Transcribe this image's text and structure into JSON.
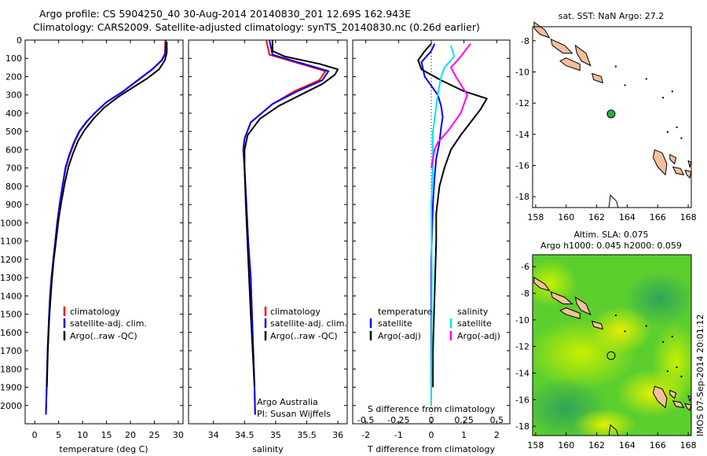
{
  "header": {
    "line1": "Argo profile: CS 5904250_40 30-Aug-2014 20140830_201 12.69S 162.943E",
    "line2": "Climatology: CARS2009. Satellite-adjusted climatology: synTS_20140830.nc (0.26d earlier)"
  },
  "chart_data": [
    {
      "type": "line",
      "name": "temperature-panel",
      "xlabel": "temperature (deg C)",
      "ylabel": "",
      "xlim": [
        -2,
        31
      ],
      "ylim": [
        2100,
        0
      ],
      "xticks": [
        0,
        5,
        10,
        15,
        20,
        25,
        30
      ],
      "yticks": [
        0,
        100,
        200,
        300,
        400,
        500,
        600,
        700,
        800,
        900,
        1000,
        1100,
        1200,
        1300,
        1400,
        1500,
        1600,
        1700,
        1800,
        1900,
        2000
      ],
      "legend": [
        "climatology",
        "satellite-adj. clim.",
        "Argo(..raw -QC)"
      ],
      "series": [
        {
          "name": "climatology",
          "color": "#ff0000",
          "x": [
            27.3,
            27.2,
            26.5,
            24.5,
            21.5,
            18.5,
            15.0,
            12.5,
            10.8,
            9.4,
            8.3,
            7.3,
            6.5,
            5.8,
            5.2,
            4.7,
            4.3,
            3.9,
            3.5,
            3.2,
            3.0,
            2.7,
            2.5,
            2.35
          ],
          "y": [
            0,
            75,
            110,
            160,
            220,
            280,
            340,
            400,
            450,
            500,
            560,
            630,
            700,
            800,
            900,
            1000,
            1100,
            1200,
            1300,
            1400,
            1500,
            1700,
            1900,
            2050
          ]
        },
        {
          "name": "satellite-adj. clim.",
          "color": "#0000ff",
          "x": [
            27.4,
            27.3,
            26.6,
            24.6,
            21.6,
            18.5,
            15.0,
            12.5,
            10.7,
            9.3,
            8.2,
            7.2,
            6.4,
            5.8,
            5.2,
            4.7,
            4.3,
            3.9,
            3.5,
            3.2,
            3.0,
            2.7,
            2.5,
            2.35
          ],
          "y": [
            0,
            75,
            110,
            160,
            220,
            280,
            340,
            400,
            450,
            500,
            560,
            630,
            700,
            800,
            900,
            1000,
            1100,
            1200,
            1300,
            1400,
            1500,
            1700,
            1900,
            2050
          ]
        },
        {
          "name": "Argo(..raw -QC)",
          "color": "#000000",
          "x": [
            27.6,
            27.6,
            27.2,
            26.0,
            23.5,
            20.5,
            17.5,
            14.5,
            12.3,
            10.5,
            9.1,
            8.0,
            7.1,
            6.3,
            5.6,
            5.0,
            4.5,
            4.0,
            3.6,
            3.3,
            3.0,
            2.75,
            2.55
          ],
          "y": [
            10,
            70,
            110,
            160,
            210,
            260,
            310,
            370,
            430,
            490,
            550,
            620,
            690,
            780,
            880,
            980,
            1090,
            1200,
            1310,
            1420,
            1540,
            1700,
            1900
          ]
        }
      ]
    },
    {
      "type": "line",
      "name": "salinity-panel",
      "xlabel": "salinity",
      "xlim": [
        33.6,
        36.15
      ],
      "ylim": [
        2100,
        0
      ],
      "xticks": [
        34,
        34.5,
        35,
        35.5,
        36
      ],
      "legend": [
        "climatology",
        "satellite-adj. clim.",
        "Argo(..raw -QC)"
      ],
      "annotation": [
        "Argo Australia",
        "PI: Susan Wijffels"
      ],
      "series": [
        {
          "name": "climatology",
          "color": "#ff0000",
          "x": [
            34.85,
            34.9,
            35.3,
            35.8,
            35.7,
            35.3,
            34.95,
            34.6,
            34.5,
            34.48,
            34.5,
            34.53,
            34.56,
            34.6,
            34.62,
            34.64,
            34.66,
            34.67
          ],
          "y": [
            0,
            80,
            120,
            170,
            220,
            280,
            350,
            450,
            540,
            600,
            700,
            900,
            1100,
            1300,
            1500,
            1700,
            1900,
            2050
          ]
        },
        {
          "name": "satellite-adj. clim.",
          "color": "#0000ff",
          "x": [
            34.9,
            34.95,
            35.35,
            35.85,
            35.75,
            35.35,
            34.95,
            34.6,
            34.5,
            34.48,
            34.5,
            34.53,
            34.56,
            34.6,
            34.62,
            34.64,
            34.66,
            34.67
          ],
          "y": [
            0,
            80,
            120,
            170,
            220,
            280,
            350,
            450,
            540,
            600,
            700,
            900,
            1100,
            1300,
            1500,
            1700,
            1900,
            2050
          ]
        },
        {
          "name": "Argo(..raw -QC)",
          "color": "#000000",
          "x": [
            34.95,
            34.95,
            35.15,
            35.7,
            36.0,
            35.95,
            35.75,
            35.4,
            35.05,
            34.75,
            34.55,
            34.5,
            34.5,
            34.52,
            34.56,
            34.6,
            34.63,
            34.66
          ],
          "y": [
            0,
            60,
            90,
            130,
            160,
            190,
            240,
            300,
            360,
            430,
            520,
            600,
            700,
            900,
            1200,
            1500,
            1700,
            1900
          ]
        }
      ]
    },
    {
      "type": "line",
      "name": "difference-panel",
      "xlabel": "T difference from climatology",
      "xlabel_top": "S difference from climatology",
      "xlim": [
        -2.4,
        2.4
      ],
      "ylim": [
        2100,
        0
      ],
      "xticks": [
        -2,
        -1,
        0,
        1,
        2
      ],
      "xticks_top": [
        -0.5,
        -0.25,
        0,
        0.25,
        0.5
      ],
      "legend": {
        "temperature": [
          "satellite",
          "Argo(-adj)"
        ],
        "salinity": [
          "satellite",
          "Argo(-adj)"
        ],
        "temperature_title": "temperature",
        "salinity_title": "salinity"
      },
      "series": [
        {
          "name": "temperature satellite",
          "color": "#0000ff",
          "x": [
            0.1,
            0.0,
            -0.3,
            -0.2,
            0.0,
            0.2,
            0.3,
            0.35,
            0.3,
            0.25,
            0.15,
            0.1,
            0.05,
            0.0,
            0.0
          ],
          "y": [
            20,
            60,
            120,
            200,
            250,
            300,
            360,
            420,
            480,
            560,
            650,
            750,
            900,
            1200,
            2000
          ]
        },
        {
          "name": "temperature Argo(-adj)",
          "color": "#000000",
          "x": [
            0.0,
            -0.2,
            -0.4,
            -0.3,
            0.3,
            1.0,
            1.7,
            1.5,
            1.2,
            0.9,
            0.6,
            0.4,
            0.25,
            0.15,
            0.15,
            0.1,
            0.05,
            0.05
          ],
          "y": [
            20,
            60,
            110,
            160,
            220,
            280,
            320,
            380,
            450,
            520,
            600,
            700,
            800,
            950,
            1100,
            1400,
            1700,
            1900
          ]
        },
        {
          "name": "salinity satellite",
          "color": "#00e5ee",
          "x": [
            0.6,
            0.7,
            0.4,
            0.3,
            0.2,
            0.05,
            0.05,
            0.0,
            0.02,
            0.0
          ],
          "y": [
            30,
            90,
            150,
            200,
            300,
            500,
            700,
            900,
            1300,
            2000
          ]
        },
        {
          "name": "salinity Argo(-adj)",
          "color": "#ff00ff",
          "x": [
            1.2,
            0.9,
            0.6,
            0.75,
            1.1,
            0.9,
            0.5,
            0.2,
            0.1,
            0.0
          ],
          "y": [
            20,
            90,
            150,
            200,
            300,
            400,
            500,
            560,
            600,
            700
          ]
        }
      ]
    },
    {
      "type": "scatter",
      "name": "sst-map",
      "title": "sat. SST: NaN Argo: 27.2",
      "xlim": [
        157.8,
        168.2
      ],
      "ylim": [
        -18.7,
        -7.1
      ],
      "xticks": [
        158,
        160,
        162,
        164,
        166,
        168
      ],
      "yticks": [
        -8,
        -10,
        -12,
        -14,
        -16,
        -18
      ],
      "point": {
        "lon": 162.943,
        "lat": -12.69,
        "color": "#2ab040"
      }
    },
    {
      "type": "heatmap",
      "name": "sla-map",
      "title_line1": "Altim. SLA: 0.075",
      "title_line2": "Argo h1000: 0.045 h2000: 0.059",
      "xlim": [
        157.8,
        168.2
      ],
      "ylim": [
        -18.7,
        -5.1
      ],
      "xticks": [
        158,
        160,
        162,
        164,
        166,
        168
      ],
      "yticks": [
        -6,
        -8,
        -10,
        -12,
        -14,
        -16,
        -18
      ],
      "point": {
        "lon": 162.943,
        "lat": -12.69
      }
    }
  ],
  "side_label": "IMOS 07-Sep-2014 20:01:12",
  "colors": {
    "climatology": "#ff0000",
    "satellite": "#0000ff",
    "argo": "#000000",
    "sal_sat": "#00e5ee",
    "sal_argo": "#ff00ff",
    "land": "#f4c09c"
  }
}
